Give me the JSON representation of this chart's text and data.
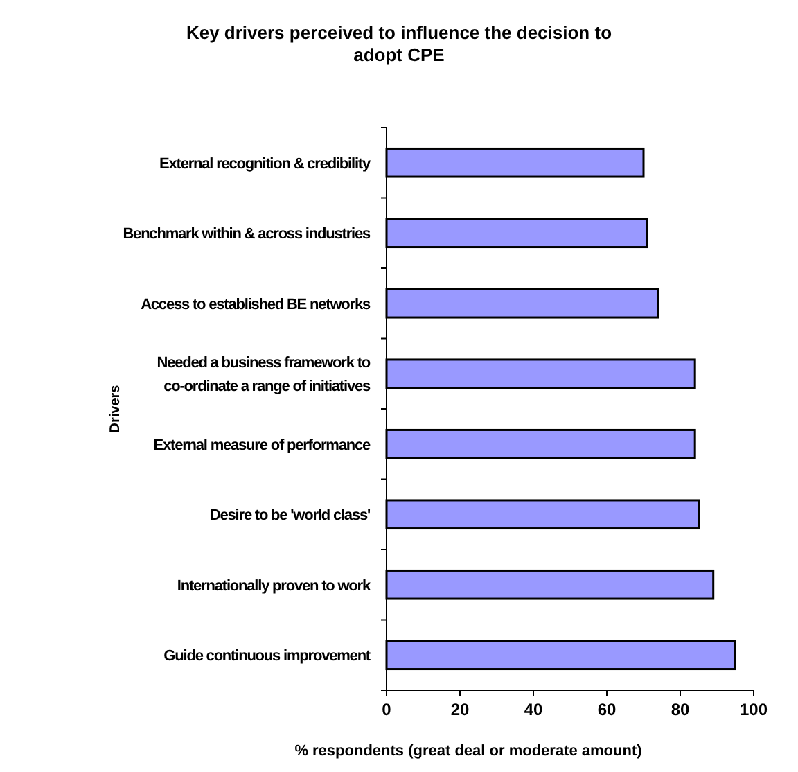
{
  "chart_data": {
    "type": "bar",
    "orientation": "horizontal",
    "title": "Key drivers perceived to influence the decision to adopt CPE",
    "xlabel": "% respondents (great deal or moderate amount)",
    "ylabel": "Drivers",
    "categories": [
      "External recognition & credibility",
      "Benchmark within & across industries",
      "Access to established BE networks",
      "Needed a business framework to co-ordinate a range of initiatives",
      "External measure of performance",
      "Desire to be 'world class'",
      "Internationally proven to work",
      "Guide continuous improvement"
    ],
    "values": [
      70,
      71,
      74,
      84,
      84,
      85,
      89,
      95
    ],
    "color": "#9999ff",
    "xlim": [
      0,
      100
    ],
    "xticks": [
      0,
      20,
      40,
      60,
      80,
      100
    ],
    "grid": false
  }
}
